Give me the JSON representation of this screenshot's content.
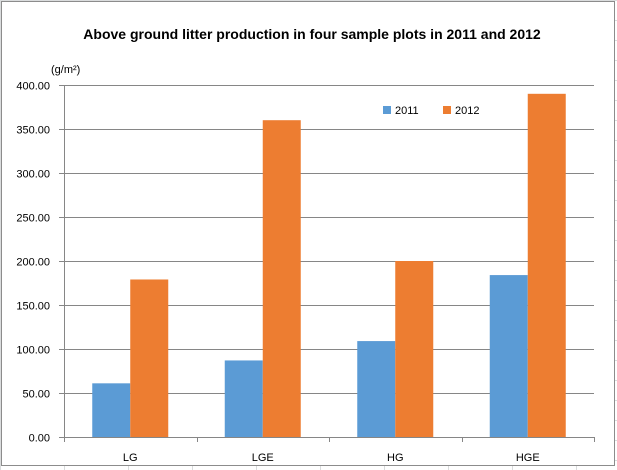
{
  "chart_data": {
    "type": "bar",
    "title": "Above ground litter production in four sample plots in 2011 and 2012",
    "ylabel": "(g/m²)",
    "xlabel": "",
    "categories": [
      "LG",
      "LGE",
      "HG",
      "HGE"
    ],
    "ylim": [
      0,
      400
    ],
    "yticks": [
      "0.00",
      "50.00",
      "100.00",
      "150.00",
      "200.00",
      "250.00",
      "300.00",
      "350.00",
      "400.00"
    ],
    "grid": true,
    "legend_position": "top-right",
    "series": [
      {
        "name": "2011",
        "color": "#5b9bd5",
        "values": [
          61,
          87,
          109,
          184
        ]
      },
      {
        "name": "2012",
        "color": "#ed7d31",
        "values": [
          179,
          360,
          200,
          390
        ]
      }
    ]
  }
}
